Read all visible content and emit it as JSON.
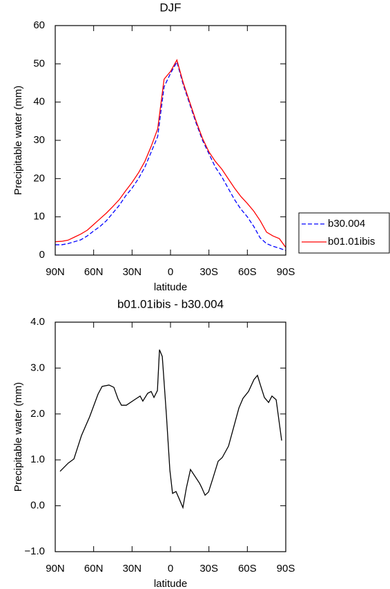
{
  "chart_data": [
    {
      "type": "line",
      "title": "DJF",
      "xlabel": "latitude",
      "ylabel": "Precipitable water (mm)",
      "x": [
        90,
        85,
        80,
        75,
        70,
        65,
        60,
        55,
        50,
        45,
        40,
        35,
        30,
        25,
        20,
        15,
        10,
        5,
        0,
        -5,
        -10,
        -15,
        -20,
        -25,
        -30,
        -35,
        -40,
        -45,
        -50,
        -55,
        -60,
        -65,
        -70,
        -75,
        -80,
        -85,
        -90
      ],
      "series": [
        {
          "name": "b30.004",
          "color": "#0000ff",
          "linestyle": "dashed",
          "values": [
            2.7,
            2.7,
            3,
            3.5,
            4,
            5,
            6.3,
            7.5,
            9,
            11,
            13,
            15.5,
            17.5,
            20,
            23,
            27,
            31,
            44,
            47.5,
            50.5,
            44.5,
            39.5,
            34.5,
            30,
            26.5,
            23,
            20.5,
            17.5,
            14.5,
            12,
            10,
            7.5,
            4.5,
            3,
            2.3,
            1.8,
            1.2
          ]
        },
        {
          "name": "b01.01ibis",
          "color": "#ff0000",
          "linestyle": "solid",
          "values": [
            3.5,
            3.6,
            3.9,
            4.7,
            5.5,
            6.5,
            8,
            9.5,
            11,
            12.7,
            14.5,
            16.8,
            19,
            21.5,
            24.5,
            28.5,
            33,
            46,
            48,
            51,
            45,
            40,
            35,
            30.5,
            27,
            24.5,
            22.5,
            20,
            17.5,
            15.3,
            13.5,
            11.5,
            9,
            6,
            5,
            4.3,
            2
          ]
        }
      ],
      "xlim": [
        90,
        -90
      ],
      "xticks": [
        {
          "value": 90,
          "label": "90N"
        },
        {
          "value": 60,
          "label": "60N"
        },
        {
          "value": 30,
          "label": "30N"
        },
        0,
        {
          "value": -30,
          "label": "30S"
        },
        {
          "value": -60,
          "label": "60S"
        },
        {
          "value": -90,
          "label": "90S"
        }
      ],
      "ylim": [
        0,
        60
      ],
      "yticks": [
        0,
        10,
        20,
        30,
        40,
        50,
        60
      ],
      "legend": "right"
    },
    {
      "type": "line",
      "title": "b01.01ibis - b30.004",
      "xlabel": "latitude",
      "ylabel": "Precipitable water (mm)",
      "x": [
        86.2,
        79.8,
        75.4,
        69.5,
        63.1,
        56.6,
        53.4,
        48,
        44.2,
        41,
        38.3,
        34.5,
        27,
        23.7,
        21.6,
        17.8,
        15.1,
        12.9,
        10.2,
        8.6,
        6.4,
        3.2,
        0.5,
        -1.6,
        -4.3,
        -6.5,
        -9.7,
        -12.4,
        -15.6,
        -22.7,
        -24.3,
        -27,
        -29.7,
        -32.9,
        -37.2,
        -40.4,
        -45.3,
        -50.2,
        -53.4,
        -56.6,
        -60.9,
        -65.2,
        -67.9,
        -70.1,
        -73.3,
        -76.6,
        -79.2,
        -82.5,
        -86.8
      ],
      "values": [
        0.75,
        0.93,
        1.02,
        1.53,
        1.94,
        2.43,
        2.6,
        2.63,
        2.58,
        2.33,
        2.19,
        2.19,
        2.33,
        2.39,
        2.28,
        2.45,
        2.49,
        2.36,
        2.51,
        3.4,
        3.25,
        1.98,
        0.78,
        0.27,
        0.31,
        0.17,
        -0.04,
        0.39,
        0.79,
        0.49,
        0.4,
        0.23,
        0.3,
        0.58,
        0.97,
        1.05,
        1.3,
        1.8,
        2.13,
        2.34,
        2.49,
        2.75,
        2.84,
        2.64,
        2.36,
        2.25,
        2.39,
        2.31,
        1.42
      ],
      "color": "#000000",
      "xlim": [
        90,
        -90
      ],
      "xticks": [
        {
          "value": 90,
          "label": "90N"
        },
        {
          "value": 60,
          "label": "60N"
        },
        {
          "value": 30,
          "label": "30N"
        },
        0,
        {
          "value": -30,
          "label": "30S"
        },
        {
          "value": -60,
          "label": "60S"
        },
        {
          "value": -90,
          "label": "90S"
        }
      ],
      "ylim": [
        -1,
        4
      ],
      "yticks": [
        {
          "value": -1,
          "label": "−1.0"
        },
        {
          "value": 0,
          "label": "0.0"
        },
        {
          "value": 1,
          "label": "1.0"
        },
        {
          "value": 2,
          "label": "2.0"
        },
        {
          "value": 3,
          "label": "3.0"
        },
        {
          "value": 4,
          "label": "4.0"
        }
      ]
    }
  ]
}
